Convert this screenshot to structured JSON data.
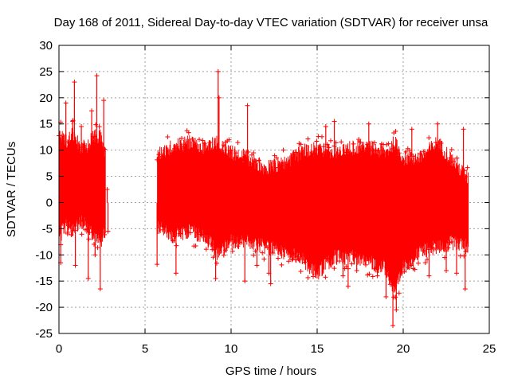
{
  "chart_data": {
    "type": "scatter",
    "title": "Day 168 of 2011, Sidereal Day-to-day VTEC variation (SDTVAR) for receiver unsa",
    "xlabel": "GPS time / hours",
    "ylabel": "SDTVAR / TECUs",
    "xlim": [
      0,
      25
    ],
    "ylim": [
      -25,
      30
    ],
    "x_ticks": [
      "0",
      "5",
      "10",
      "15",
      "20",
      "25"
    ],
    "y_ticks": [
      "-25",
      "-20",
      "-15",
      "-10",
      "-5",
      "0",
      "5",
      "10",
      "15",
      "20",
      "25",
      "30"
    ],
    "grid": true,
    "marker": "+",
    "color": "#ff0000",
    "series": [
      {
        "name": "SDTVAR",
        "envelope": [
          {
            "x": 0.0,
            "min": -5,
            "max": 12
          },
          {
            "x": 0.4,
            "min": -3,
            "max": 10
          },
          {
            "x": 0.8,
            "min": -4,
            "max": 12
          },
          {
            "x": 1.2,
            "min": -2,
            "max": 9
          },
          {
            "x": 1.6,
            "min": -3,
            "max": 9
          },
          {
            "x": 2.0,
            "min": -5,
            "max": 11
          },
          {
            "x": 2.4,
            "min": -6,
            "max": 11
          },
          {
            "x": 2.7,
            "min": -4,
            "max": 8
          },
          {
            "x": 5.7,
            "min": -3,
            "max": 8
          },
          {
            "x": 6.5,
            "min": -5,
            "max": 9
          },
          {
            "x": 7.5,
            "min": -4,
            "max": 10
          },
          {
            "x": 8.5,
            "min": -5,
            "max": 9
          },
          {
            "x": 9.2,
            "min": -8,
            "max": 10
          },
          {
            "x": 10.0,
            "min": -6,
            "max": 8
          },
          {
            "x": 11.0,
            "min": -6,
            "max": 7
          },
          {
            "x": 12.0,
            "min": -7,
            "max": 5
          },
          {
            "x": 13.0,
            "min": -8,
            "max": 6
          },
          {
            "x": 14.0,
            "min": -9,
            "max": 8
          },
          {
            "x": 15.0,
            "min": -12,
            "max": 9
          },
          {
            "x": 16.0,
            "min": -9,
            "max": 8
          },
          {
            "x": 17.0,
            "min": -9,
            "max": 9
          },
          {
            "x": 18.0,
            "min": -10,
            "max": 9
          },
          {
            "x": 19.0,
            "min": -11,
            "max": 8
          },
          {
            "x": 19.5,
            "min": -16,
            "max": 10
          },
          {
            "x": 20.0,
            "min": -11,
            "max": 7
          },
          {
            "x": 21.0,
            "min": -8,
            "max": 7
          },
          {
            "x": 22.0,
            "min": -7,
            "max": 10
          },
          {
            "x": 23.0,
            "min": -6,
            "max": 6
          },
          {
            "x": 23.8,
            "min": -7,
            "max": 3
          }
        ],
        "spikes": [
          {
            "x": 0.1,
            "y": -11.5
          },
          {
            "x": 0.4,
            "y": 19
          },
          {
            "x": 0.5,
            "y": -6
          },
          {
            "x": 0.8,
            "y": 15.5
          },
          {
            "x": 0.9,
            "y": 23
          },
          {
            "x": 0.95,
            "y": -12
          },
          {
            "x": 1.3,
            "y": 14.5
          },
          {
            "x": 1.7,
            "y": -14.5
          },
          {
            "x": 1.9,
            "y": 17.5
          },
          {
            "x": 2.1,
            "y": -10
          },
          {
            "x": 2.2,
            "y": 24.2
          },
          {
            "x": 2.4,
            "y": -16.5
          },
          {
            "x": 2.6,
            "y": 19.5
          },
          {
            "x": 2.8,
            "y": 2.5
          },
          {
            "x": 2.85,
            "y": -5.5
          },
          {
            "x": 5.7,
            "y": -11.8
          },
          {
            "x": 6.8,
            "y": -13.5
          },
          {
            "x": 8.9,
            "y": -9
          },
          {
            "x": 9.1,
            "y": -14.5
          },
          {
            "x": 9.25,
            "y": 25
          },
          {
            "x": 9.3,
            "y": 20
          },
          {
            "x": 10.0,
            "y": -7
          },
          {
            "x": 10.8,
            "y": -15
          },
          {
            "x": 10.95,
            "y": 18.5
          },
          {
            "x": 11.5,
            "y": -12
          },
          {
            "x": 12.2,
            "y": -13.5
          },
          {
            "x": 12.3,
            "y": -15.5
          },
          {
            "x": 15.5,
            "y": 14.5
          },
          {
            "x": 16.0,
            "y": 15.5
          },
          {
            "x": 16.5,
            "y": -14
          },
          {
            "x": 16.8,
            "y": -16
          },
          {
            "x": 17.3,
            "y": -13
          },
          {
            "x": 18.0,
            "y": 15
          },
          {
            "x": 18.5,
            "y": -14
          },
          {
            "x": 19.0,
            "y": -18
          },
          {
            "x": 19.4,
            "y": -23.5
          },
          {
            "x": 19.6,
            "y": -20.5
          },
          {
            "x": 20.5,
            "y": 14
          },
          {
            "x": 21.5,
            "y": -14
          },
          {
            "x": 22.0,
            "y": 15
          },
          {
            "x": 22.5,
            "y": -13
          },
          {
            "x": 23.1,
            "y": -13.5
          },
          {
            "x": 23.5,
            "y": 14
          },
          {
            "x": 23.6,
            "y": -16.5
          }
        ]
      }
    ]
  }
}
